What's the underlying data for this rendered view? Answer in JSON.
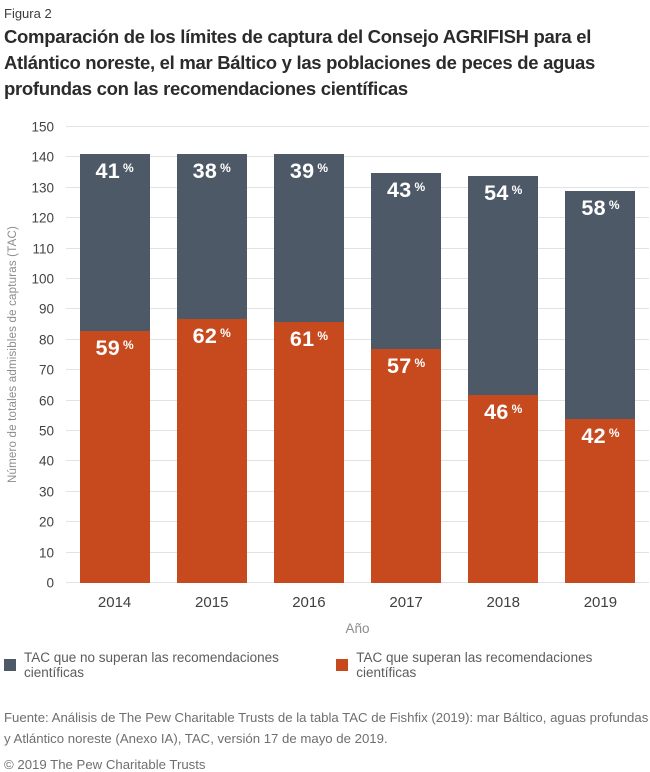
{
  "figure": {
    "label": "Figura 2",
    "title": "Comparación de los límites de captura del Consejo AGRIFISH para el Atlántico noreste, el mar Báltico y las poblaciones de peces de aguas profundas con las recomendaciones científicas"
  },
  "chart_data": {
    "type": "bar",
    "subtype": "stacked",
    "categories": [
      "2014",
      "2015",
      "2016",
      "2017",
      "2018",
      "2019"
    ],
    "totals": [
      141,
      141,
      141,
      135,
      134,
      129
    ],
    "series": [
      {
        "name": "TAC que no superan las recomendaciones científicas",
        "color": "#4e5967",
        "position": "top",
        "values": [
          58,
          54,
          55,
          58,
          72,
          75
        ],
        "pct": [
          41,
          38,
          39,
          43,
          54,
          58
        ]
      },
      {
        "name": "TAC que superan las recomendaciones científicas",
        "color": "#c64a1e",
        "position": "bottom",
        "values": [
          83,
          87,
          86,
          77,
          62,
          54
        ],
        "pct": [
          59,
          62,
          61,
          57,
          46,
          42
        ]
      }
    ],
    "pct_suffix": "%",
    "xlabel": "Año",
    "ylabel": "Número de totales admisibles de capturas (TAC)",
    "ylim": [
      0,
      150
    ],
    "ytick_step": 10,
    "grid": true,
    "gridline_color": "#e2e2e2",
    "legend_position": "bottom"
  },
  "footer": {
    "source": "Fuente: Análisis de The Pew Charitable Trusts de la tabla TAC de Fishfix (2019): mar Báltico, aguas profundas y Atlántico noreste (Anexo IA), TAC, versión 17 de mayo de 2019.",
    "copyright": "© 2019 The Pew Charitable Trusts"
  }
}
